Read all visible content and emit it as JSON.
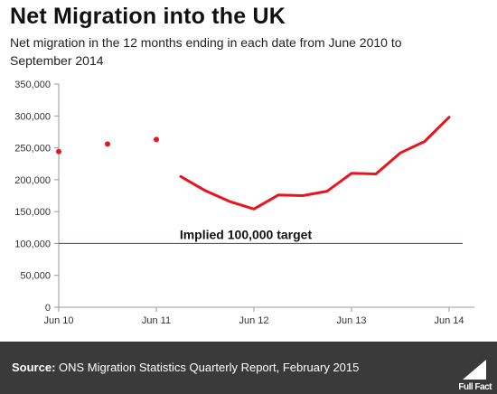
{
  "header": {
    "title": "Net Migration into the UK",
    "subtitle": "Net migration in the 12 months ending in each date from June 2010  to September 2014"
  },
  "footer": {
    "source_label": "Source:",
    "source_text": " ONS Migration Statistics Quarterly Report, February 2015",
    "logo_text": "Full Fact"
  },
  "colors": {
    "series": "#e8141e",
    "target_line": "#a01b1b",
    "axis": "#999999",
    "footer_bg": "#3a3a3a"
  },
  "chart_data": {
    "type": "line",
    "title": "Net Migration into the UK",
    "xlabel": "",
    "ylabel": "",
    "ylim": [
      0,
      350000
    ],
    "yticks": [
      0,
      50000,
      100000,
      150000,
      200000,
      250000,
      300000,
      350000
    ],
    "ytick_labels": [
      "0",
      "50,000",
      "100,000",
      "150,000",
      "200,000",
      "250,000",
      "300,000",
      "350,000"
    ],
    "x_range": [
      "2010-06",
      "2014-09"
    ],
    "xtick_labels": [
      "Jun 10",
      "Jun 11",
      "Jun 12",
      "Jun 13",
      "Jun 14"
    ],
    "xtick_positions": [
      "2010-06",
      "2011-06",
      "2012-06",
      "2013-06",
      "2014-06"
    ],
    "grid": false,
    "series": [
      {
        "style": "points",
        "points": [
          {
            "x": "2010-06",
            "y": 244000
          },
          {
            "x": "2010-12",
            "y": 256000
          },
          {
            "x": "2011-06",
            "y": 263000
          }
        ]
      },
      {
        "style": "line",
        "points": [
          {
            "x": "2011-09",
            "y": 205000
          },
          {
            "x": "2011-12",
            "y": 183000
          },
          {
            "x": "2012-03",
            "y": 166000
          },
          {
            "x": "2012-06",
            "y": 154000
          },
          {
            "x": "2012-09",
            "y": 176000
          },
          {
            "x": "2012-12",
            "y": 175000
          },
          {
            "x": "2013-03",
            "y": 182000
          },
          {
            "x": "2013-06",
            "y": 210000
          },
          {
            "x": "2013-09",
            "y": 209000
          },
          {
            "x": "2013-12",
            "y": 242000
          },
          {
            "x": "2014-03",
            "y": 260000
          },
          {
            "x": "2014-06",
            "y": 298000
          }
        ]
      }
    ],
    "reference_line": {
      "y": 100000,
      "label": "Implied 100,000 target"
    }
  }
}
